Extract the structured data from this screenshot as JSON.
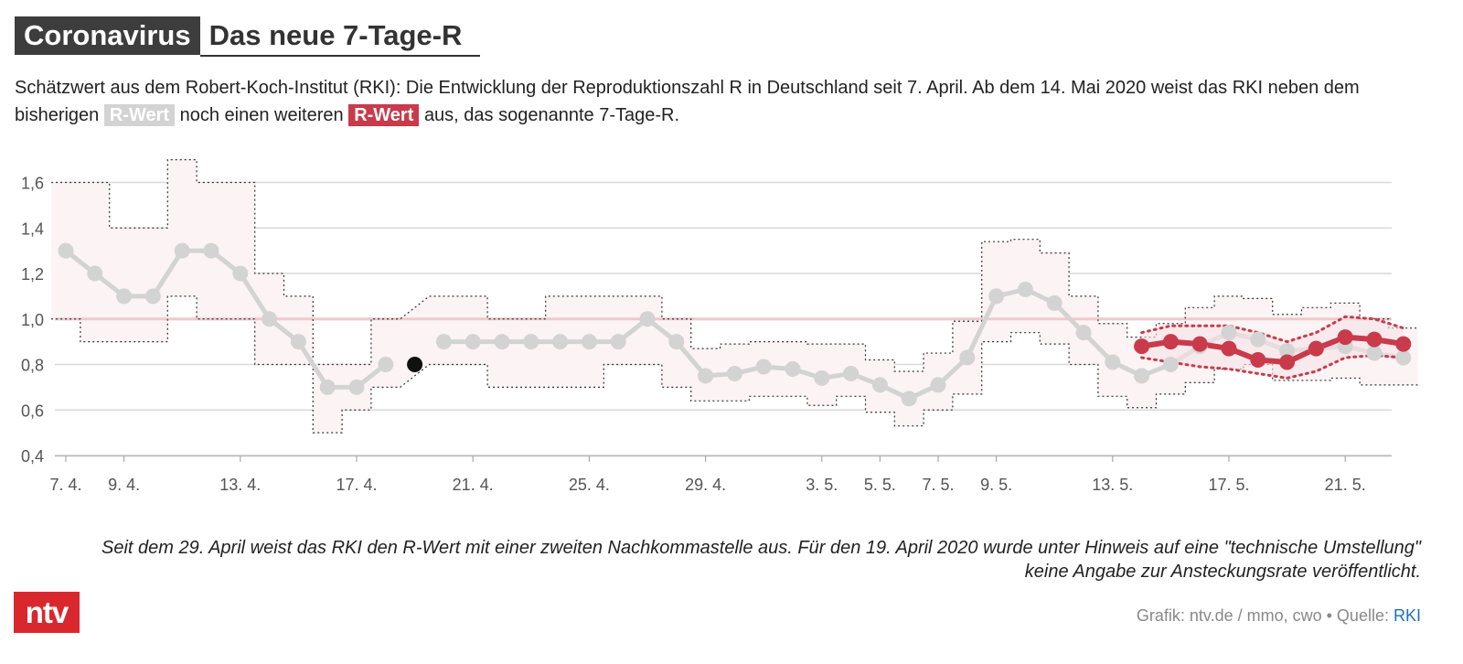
{
  "header": {
    "kicker": "Coronavirus",
    "title": "Das neue 7-Tage-R"
  },
  "description": {
    "part1": "Schätzwert aus dem Robert-Koch-Institut (RKI): Die Entwicklung der Reproduktionszahl R in Deutschland seit 7. April. Ab dem 14. Mai 2020 weist das RKI neben dem bisherigen",
    "badge_old": "R-Wert",
    "part2": "noch einen weiteren",
    "badge_new": "R-Wert",
    "part3": "aus, das sogenannte 7-Tage-R."
  },
  "note": "Seit dem 29. April weist das RKI den R-Wert mit einer zweiten Nachkommastelle aus. Für den 19. April 2020 wurde unter Hinweis auf eine \"technische Umstellung\" keine Angabe zur Ansteckungsrate veröffentlicht.",
  "footer": {
    "logo": "ntv",
    "credit": "Grafik: ntv.de / mmo, cwo • Quelle:",
    "source": "RKI"
  },
  "colors": {
    "r_value": "#d3d3d3",
    "r7_value": "#c93a4b",
    "missing_marker": "#111111",
    "reference_line": "#efc9cf",
    "band_fill": "#fbf3f4"
  },
  "chart_data": {
    "type": "line",
    "x_start": "7. 4.",
    "x_tick_labels": [
      "7. 4.",
      "9. 4.",
      "13. 4.",
      "17. 4.",
      "21. 4.",
      "25. 4.",
      "29. 4.",
      "3. 5.",
      "5. 5.",
      "7. 5.",
      "9. 5.",
      "13. 5.",
      "17. 5.",
      "21. 5."
    ],
    "x_tick_days": [
      7,
      9,
      13,
      17,
      21,
      25,
      29,
      33,
      35,
      37,
      39,
      43,
      47,
      51
    ],
    "y_ticks": [
      "0,4",
      "0,6",
      "0,8",
      "1,0",
      "1,2",
      "1,4",
      "1,6"
    ],
    "y_tick_values": [
      0.4,
      0.6,
      0.8,
      1.0,
      1.2,
      1.4,
      1.6
    ],
    "ylim": [
      0.4,
      1.65
    ],
    "reference_value": 1.0,
    "series": [
      {
        "name": "R-Wert",
        "days": [
          7,
          8,
          9,
          10,
          11,
          12,
          13,
          14,
          15,
          16,
          17,
          18,
          20,
          21,
          22,
          23,
          24,
          25,
          26,
          27,
          28,
          29,
          30,
          31,
          32,
          33,
          34,
          35,
          36,
          37,
          38,
          39,
          40,
          41,
          42,
          43,
          44,
          45,
          46,
          47,
          48,
          49,
          50,
          51,
          52,
          53
        ],
        "values": [
          1.3,
          1.2,
          1.1,
          1.1,
          1.3,
          1.3,
          1.2,
          1.0,
          0.9,
          0.7,
          0.7,
          0.8,
          0.9,
          0.9,
          0.9,
          0.9,
          0.9,
          0.9,
          0.9,
          1.0,
          0.9,
          0.75,
          0.76,
          0.79,
          0.78,
          0.74,
          0.76,
          0.71,
          0.65,
          0.71,
          0.83,
          1.1,
          1.13,
          1.07,
          0.94,
          0.81,
          0.75,
          0.8,
          0.88,
          0.94,
          0.91,
          0.86,
          0.87,
          0.88,
          0.85,
          0.83
        ],
        "lower": [
          1.0,
          0.9,
          0.9,
          0.9,
          1.1,
          1.0,
          1.0,
          0.8,
          0.8,
          0.5,
          0.6,
          0.7,
          0.8,
          0.8,
          0.7,
          0.7,
          0.7,
          0.7,
          0.8,
          0.8,
          0.7,
          0.64,
          0.64,
          0.66,
          0.66,
          0.62,
          0.66,
          0.59,
          0.53,
          0.6,
          0.67,
          0.9,
          0.94,
          0.89,
          0.8,
          0.66,
          0.61,
          0.67,
          0.72,
          0.78,
          0.8,
          0.73,
          0.73,
          0.74,
          0.71,
          0.71
        ],
        "upper": [
          1.6,
          1.6,
          1.4,
          1.4,
          1.7,
          1.6,
          1.6,
          1.2,
          1.1,
          0.8,
          0.8,
          1.0,
          1.1,
          1.1,
          1.0,
          1.0,
          1.1,
          1.1,
          1.1,
          1.1,
          1.0,
          0.87,
          0.89,
          0.9,
          0.9,
          0.89,
          0.89,
          0.82,
          0.77,
          0.85,
          0.99,
          1.34,
          1.35,
          1.29,
          1.1,
          0.98,
          0.92,
          0.98,
          1.05,
          1.1,
          1.09,
          1.02,
          1.05,
          1.07,
          1.0,
          0.96
        ]
      },
      {
        "name": "7-Tage-R",
        "days": [
          44,
          45,
          46,
          47,
          48,
          49,
          50,
          51,
          52,
          53
        ],
        "values": [
          0.88,
          0.9,
          0.89,
          0.87,
          0.82,
          0.81,
          0.87,
          0.92,
          0.91,
          0.89
        ],
        "lower": [
          0.83,
          0.81,
          0.79,
          0.78,
          0.76,
          0.74,
          0.77,
          0.83,
          0.84,
          0.83
        ],
        "upper": [
          0.94,
          0.97,
          0.97,
          0.97,
          0.94,
          0.9,
          0.94,
          1.01,
          1.0,
          0.96
        ]
      }
    ],
    "missing_point": {
      "day": 19,
      "value": 0.8
    }
  }
}
